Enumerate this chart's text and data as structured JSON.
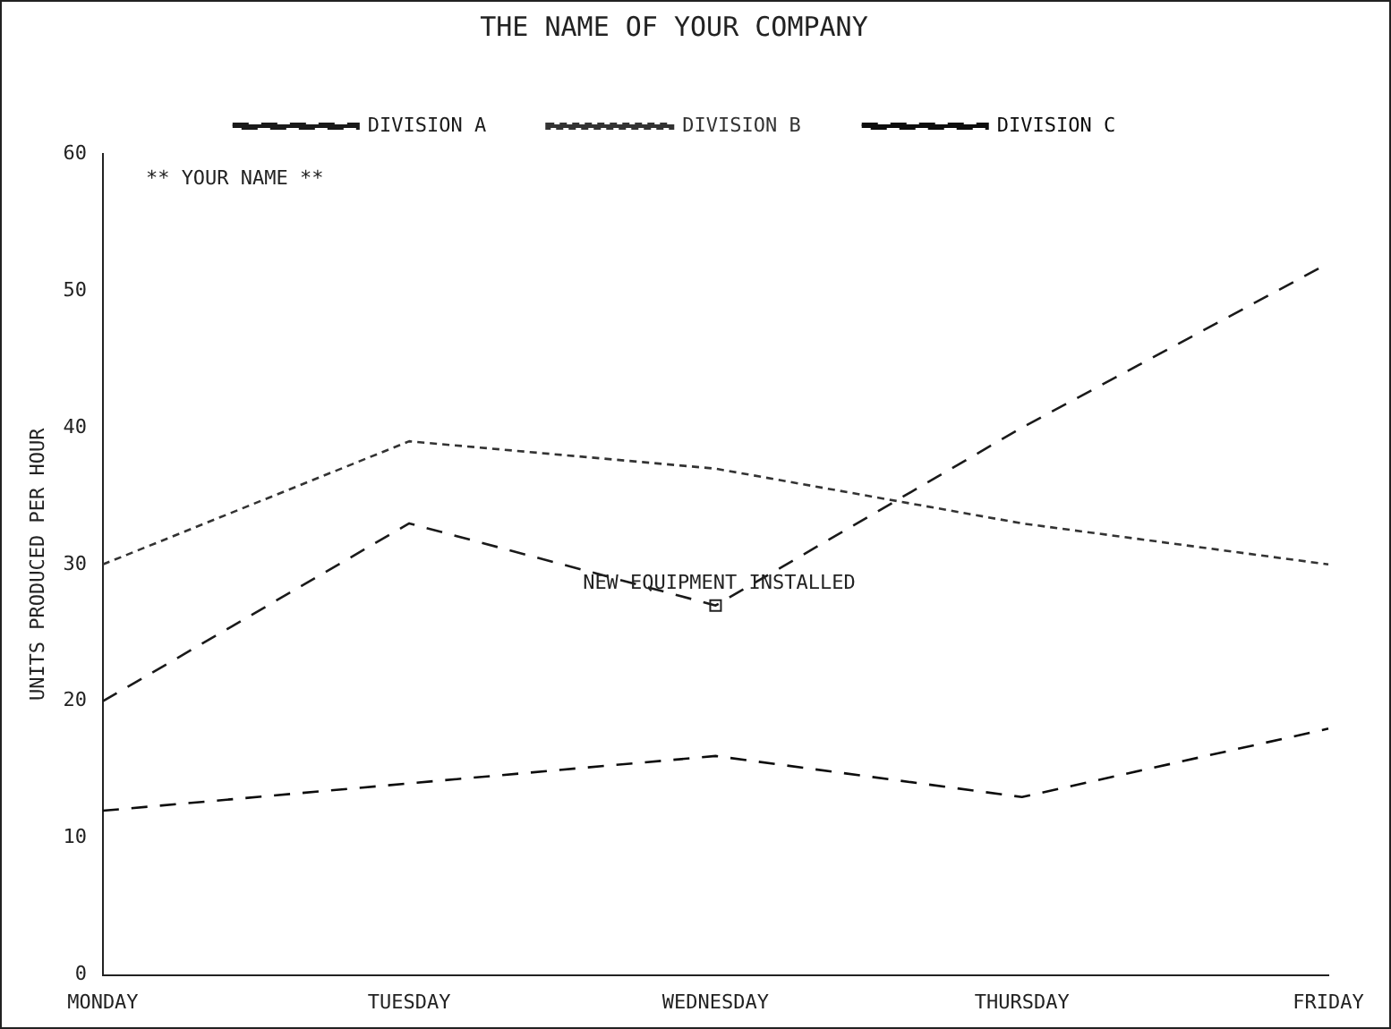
{
  "chart_data": {
    "type": "line",
    "title": "THE NAME OF YOUR COMPANY",
    "ylabel": "UNITS PRODUCED PER HOUR",
    "categories": [
      "MONDAY",
      "TUESDAY",
      "WEDNESDAY",
      "THURSDAY",
      "FRIDAY"
    ],
    "series": [
      {
        "name": "DIVISION A",
        "color": "#1a1a1a",
        "line_style": "dashed",
        "values": [
          20,
          33,
          27,
          40,
          52
        ]
      },
      {
        "name": "DIVISION B",
        "color": "#333333",
        "line_style": "dotted",
        "values": [
          30,
          39,
          37,
          33,
          30
        ]
      },
      {
        "name": "DIVISION C",
        "color": "#0d0d0d",
        "line_style": "dashed",
        "values": [
          12,
          14,
          16,
          13,
          18
        ]
      }
    ],
    "ylim": [
      0,
      60
    ],
    "yticks": [
      0,
      10,
      20,
      30,
      40,
      50,
      60
    ],
    "grid": false,
    "legend": "top",
    "marker": "none",
    "annotations": [
      "** YOUR NAME **",
      {
        "text": "NEW EQUIPMENT INSTALLED",
        "x": "WEDNESDAY",
        "y": 27
      }
    ]
  }
}
